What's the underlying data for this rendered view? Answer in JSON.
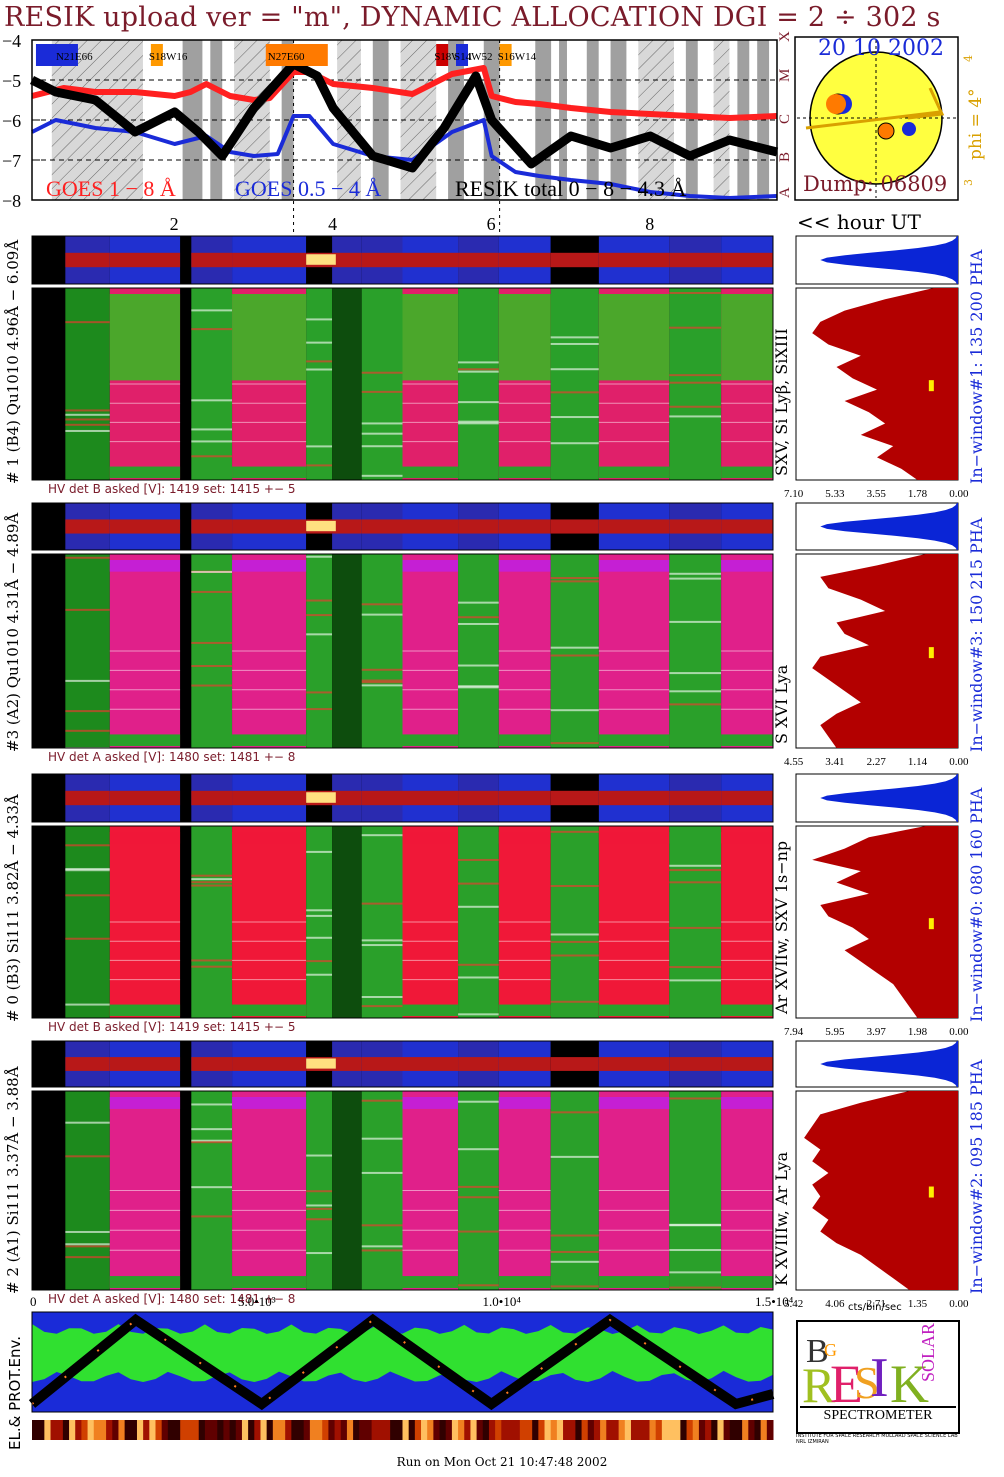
{
  "header": {
    "title": "RESIK upload ver = \"m\", DYNAMIC ALLOCATION  DGI =   2 ÷ 302 s"
  },
  "goes_panel": {
    "yticks": [
      "−4",
      "−5",
      "−6",
      "−7",
      "−8"
    ],
    "xticks": [
      "2",
      "4",
      "6",
      "8"
    ],
    "hour_label": "<< hour UT",
    "legend": [
      "GOES 1 − 8 Å",
      "GOES 0.5 − 4 Å",
      "RESIK total  0 − 8 − 4.3 Å"
    ],
    "regions": [
      "N21E66",
      "S18W16",
      "N27E60",
      "S18W51",
      "S14W52",
      "S16W14"
    ],
    "class_letters": [
      "X",
      "M",
      "C",
      "B",
      "A"
    ]
  },
  "sun": {
    "date": "20 10 2002",
    "dump": "Dump: 06809",
    "phi": "phi =  4°",
    "phi_ticks": [
      "4",
      "3"
    ]
  },
  "channels": [
    {
      "left_label": "# 1 (B4) Qu1010 4.96Å − 6.09Å",
      "line_label": "SXV, Si Lyβ, SiXIII",
      "window_label": "In−window#1:  135 200 PHA",
      "hv": "HV det B asked [V]:  1419 set:  1415  +−    5",
      "xticks": [
        "7.10",
        "5.33",
        "3.55",
        "1.78",
        "0.00"
      ]
    },
    {
      "left_label": "#3 (A2) Qu1010  4.31Å − 4.89Å",
      "line_label": "S XVI Lya",
      "window_label": "In−window#3:  150 215 PHA",
      "hv": "HV det A asked [V]:  1480 set:  1481  +−    8",
      "xticks": [
        "4.55",
        "3.41",
        "2.27",
        "1.14",
        "0.00"
      ]
    },
    {
      "left_label": "# 0 (B3) Si111  3.82Å − 4.33Å",
      "line_label": "Ar XVIIw, SXV 1s−np",
      "window_label": "In−window#0:  080 160 PHA",
      "hv": "HV det B asked [V]:  1419 set:  1415  +−    5",
      "xticks": [
        "7.94",
        "5.95",
        "3.97",
        "1.98",
        "0.00"
      ]
    },
    {
      "left_label": "# 2 (A1) Si111  3.37Å − 3.88Å",
      "line_label": "K XVIIIw, Ar Lya",
      "window_label": "In−window#2:  095 185 PHA",
      "hv": "HV det A asked [V]:  1480 set:  1481  +−    8",
      "xticks": [
        "5.42",
        "4.06",
        "2.71",
        "1.35",
        "0.00"
      ]
    }
  ],
  "bottom": {
    "xticks": [
      "0",
      "5.0•10³",
      "1.0•10⁴",
      "1.5•10⁴"
    ],
    "cts_label": "cts/bin/sec",
    "env_label": "EL.& PROT.Env."
  },
  "logo": {
    "letters": "RESIK",
    "word": "SPECTROMETER",
    "fine_print": "INSTITUTE FOR SPACE RESEARCH  MULLARD SPACE SCIENCE LAB  NRL  IZMIRAN"
  },
  "footer": "Run on Mon Oct 21 10:47:48 2002",
  "colors": {
    "goes_long": "#ff2020",
    "goes_short": "#1a2bd8",
    "resik": "#000000",
    "title": "#7a1b2a",
    "sun": "#ffff40",
    "hist_red": "#b30000",
    "hist_blue": "#0a25d6"
  },
  "chart_data": [
    {
      "type": "line",
      "title": "",
      "xlabel": "<< hour UT",
      "ylabel": "",
      "xlim": [
        0.2,
        9.6
      ],
      "ylim": [
        -8,
        -4
      ],
      "series": [
        {
          "name": "GOES 1 − 8 Å",
          "x": [
            0.2,
            0.6,
            1.0,
            1.5,
            2.0,
            2.2,
            2.4,
            2.7,
            3.0,
            3.2,
            3.5,
            3.7,
            4.0,
            4.5,
            5.0,
            5.5,
            5.9,
            6.0,
            6.3,
            6.6,
            7.0,
            7.5,
            8.0,
            8.5,
            9.0,
            9.6
          ],
          "y": [
            -5.4,
            -5.2,
            -5.3,
            -5.3,
            -5.4,
            -5.3,
            -5.1,
            -5.4,
            -5.5,
            -5.45,
            -4.8,
            -4.8,
            -5.1,
            -5.2,
            -5.35,
            -4.85,
            -4.7,
            -5.4,
            -5.55,
            -5.6,
            -5.7,
            -5.8,
            -5.85,
            -5.9,
            -5.95,
            -5.9
          ]
        },
        {
          "name": "GOES 0.5 − 4 Å",
          "x": [
            0.2,
            0.5,
            1.0,
            1.5,
            2.0,
            2.2,
            2.4,
            2.7,
            3.0,
            3.3,
            3.5,
            3.7,
            4.0,
            4.5,
            5.0,
            5.5,
            5.9,
            6.0,
            6.3,
            6.6,
            7.0,
            7.5,
            8.0,
            8.5,
            9.0,
            9.6
          ],
          "y": [
            -6.3,
            -6.0,
            -6.2,
            -6.3,
            -6.6,
            -6.5,
            -6.4,
            -6.8,
            -6.9,
            -6.85,
            -5.9,
            -5.9,
            -6.6,
            -6.9,
            -7.0,
            -6.3,
            -6.0,
            -6.9,
            -7.3,
            -7.4,
            -7.5,
            -7.6,
            -7.8,
            -7.9,
            -7.95,
            -7.9
          ]
        },
        {
          "name": "RESIK total  0 − 8 − 4.3 Å",
          "x": [
            0.2,
            0.5,
            1.0,
            1.5,
            2.0,
            2.3,
            2.6,
            3.0,
            3.5,
            3.8,
            4.0,
            4.5,
            5.0,
            5.4,
            5.8,
            6.0,
            6.5,
            7.0,
            7.5,
            8.0,
            8.5,
            9.0,
            9.6
          ],
          "y": [
            -5.0,
            -5.3,
            -5.5,
            -6.3,
            -5.8,
            -6.3,
            -6.9,
            -5.7,
            -4.6,
            -4.9,
            -5.7,
            -6.9,
            -7.2,
            -6.2,
            -4.9,
            -6.0,
            -7.1,
            -6.4,
            -6.7,
            -6.4,
            -6.9,
            -6.5,
            -6.8
          ]
        }
      ]
    },
    {
      "type": "area",
      "title": "",
      "xlabel": "",
      "ylabel": "",
      "x_ticks": [
        "7.10",
        "5.33",
        "3.55",
        "1.78",
        "0.00"
      ],
      "series": [
        {
          "name": "In−window#1:  135 200 PHA",
          "values": [
            0.15,
            0.45,
            0.7,
            0.85,
            0.9,
            0.8,
            0.6,
            0.75,
            0.65,
            0.5,
            0.7,
            0.55,
            0.45,
            0.6,
            0.4,
            0.5,
            0.35,
            0.25
          ]
        }
      ]
    },
    {
      "type": "area",
      "title": "",
      "xlabel": "",
      "ylabel": "",
      "x_ticks": [
        "4.55",
        "3.41",
        "2.27",
        "1.14",
        "0.00"
      ],
      "series": [
        {
          "name": "In−window#3:  150 215 PHA",
          "values": [
            0.2,
            0.5,
            0.85,
            0.8,
            0.6,
            0.45,
            0.75,
            0.7,
            0.55,
            0.85,
            0.9,
            0.8,
            0.7,
            0.6,
            0.75,
            0.85,
            0.8,
            0.75
          ]
        }
      ]
    },
    {
      "type": "area",
      "title": "",
      "xlabel": "",
      "ylabel": "",
      "x_ticks": [
        "7.94",
        "5.95",
        "3.97",
        "1.98",
        "0.00"
      ],
      "series": [
        {
          "name": "In−window#0:  080 160 PHA",
          "values": [
            0.2,
            0.55,
            0.7,
            0.9,
            0.6,
            0.75,
            0.55,
            0.85,
            0.8,
            0.65,
            0.55,
            0.7,
            0.6,
            0.5,
            0.4,
            0.35,
            0.3,
            0.25
          ]
        }
      ]
    },
    {
      "type": "area",
      "title": "",
      "xlabel": "cts/bin/sec",
      "ylabel": "",
      "x_ticks": [
        "5.42",
        "4.06",
        "2.71",
        "1.35",
        "0.00"
      ],
      "series": [
        {
          "name": "In−window#2:  095 185 PHA",
          "values": [
            0.3,
            0.6,
            0.85,
            0.9,
            0.95,
            0.85,
            0.9,
            0.8,
            0.9,
            0.85,
            0.9,
            0.8,
            0.85,
            0.75,
            0.6,
            0.5,
            0.4,
            0.3
          ]
        }
      ]
    }
  ]
}
